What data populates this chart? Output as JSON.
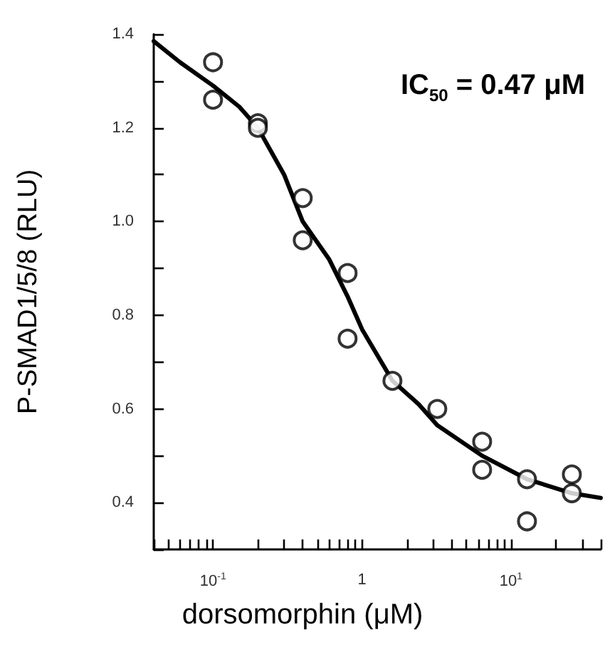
{
  "chart_data": {
    "type": "scatter",
    "xlabel": "dorsomorphin (μM)",
    "ylabel": "P-SMAD1/5/8 (RLU)",
    "annotations": [
      "IC$_{50}$ = 0.47 μM"
    ],
    "log": "x",
    "grid": false,
    "marker": "circle",
    "xlim": [
      0.04,
      40
    ],
    "ylim": [
      0.3,
      1.4
    ],
    "xticks": [
      {
        "value": 0.04,
        "label": null
      },
      {
        "value": 0.05,
        "label": null
      },
      {
        "value": 0.06,
        "label": null
      },
      {
        "value": 0.07,
        "label": null
      },
      {
        "value": 0.08,
        "label": null
      },
      {
        "value": 0.09,
        "label": null
      },
      {
        "value": 0.1,
        "label": "10$^{-1}$"
      },
      {
        "value": 0.2,
        "label": null
      },
      {
        "value": 0.3,
        "label": null
      },
      {
        "value": 0.4,
        "label": null
      },
      {
        "value": 0.5,
        "label": null
      },
      {
        "value": 0.6,
        "label": null
      },
      {
        "value": 0.7,
        "label": null
      },
      {
        "value": 0.8,
        "label": null
      },
      {
        "value": 0.9,
        "label": null
      },
      1,
      {
        "value": 2,
        "label": null
      },
      {
        "value": 3,
        "label": null
      },
      {
        "value": 4,
        "label": null
      },
      {
        "value": 5,
        "label": null
      },
      {
        "value": 6,
        "label": null
      },
      {
        "value": 7,
        "label": null
      },
      {
        "value": 8,
        "label": null
      },
      {
        "value": 9,
        "label": null
      },
      {
        "value": 10,
        "label": "10$^{1}$"
      },
      {
        "value": 20,
        "label": null
      },
      {
        "value": 30,
        "label": null
      },
      {
        "value": 40,
        "label": null
      }
    ],
    "yticks": [
      {
        "value": 0.3,
        "label": null
      },
      0.4,
      {
        "value": 0.5,
        "label": null
      },
      0.6,
      {
        "value": 0.7,
        "label": null
      },
      0.8,
      {
        "value": 0.9,
        "label": null
      },
      {
        "value": 1,
        "label": "1.0"
      },
      {
        "value": 1.1,
        "label": null
      },
      1.2,
      {
        "value": 1.3,
        "label": null
      },
      1.4
    ],
    "series": [
      {
        "color": "#000000",
        "x": [
          0.1,
          0.1,
          0.2,
          0.2,
          0.4,
          0.4,
          0.8,
          0.8,
          1.6,
          3.2,
          6.4,
          6.4,
          12.8,
          12.8,
          25.6,
          25.6
        ],
        "values": [
          1.34,
          1.26,
          1.21,
          1.2,
          1.05,
          0.96,
          0.89,
          0.75,
          0.66,
          0.6,
          0.53,
          0.47,
          0.45,
          0.36,
          0.46,
          0.42
        ]
      },
      {
        "type": "line",
        "color": "#000000",
        "marker": "none",
        "line_style": "solid",
        "x": [
          0.04,
          0.06,
          0.1,
          0.15,
          0.2,
          0.3,
          0.4,
          0.6,
          0.8,
          1,
          1.6,
          2.4,
          3.2,
          6.4,
          12.8,
          25.6,
          40
        ],
        "values": [
          1.385,
          1.34,
          1.29,
          1.245,
          1.2,
          1.1,
          1.0,
          0.92,
          0.84,
          0.77,
          0.66,
          0.61,
          0.565,
          0.5,
          0.45,
          0.42,
          0.41
        ]
      }
    ]
  }
}
